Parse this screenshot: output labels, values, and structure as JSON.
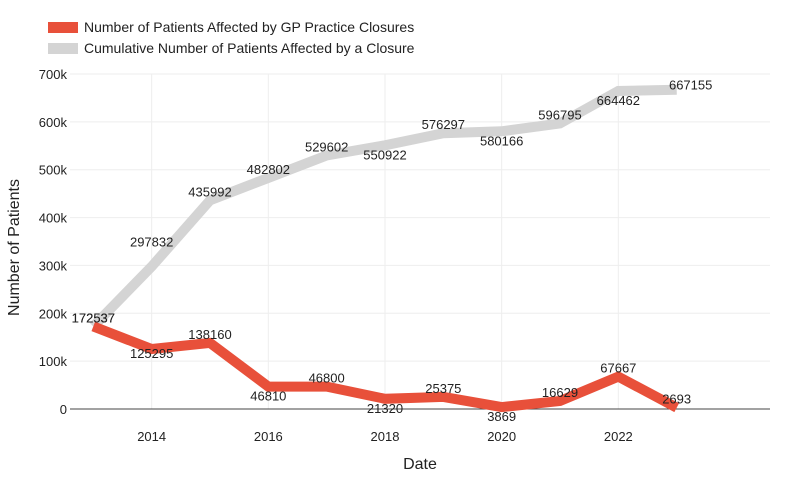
{
  "chart_data": {
    "type": "line",
    "xlabel": "Date",
    "ylabel": "Number of Patients",
    "xlim": [
      2012.6,
      2024.6
    ],
    "ylim": [
      0,
      700000
    ],
    "grid": true,
    "legend_position": "top-left",
    "x_ticks": [
      2014,
      2016,
      2018,
      2020,
      2022
    ],
    "y_ticks": [
      0,
      100000,
      200000,
      300000,
      400000,
      500000,
      600000,
      700000
    ],
    "y_tick_labels": [
      "0",
      "100k",
      "200k",
      "300k",
      "400k",
      "500k",
      "600k",
      "700k"
    ],
    "x": [
      2013,
      2014,
      2015,
      2016,
      2017,
      2018,
      2019,
      2020,
      2021,
      2022,
      2023
    ],
    "series": [
      {
        "name": "Number of Patients Affected by GP Practice Closures",
        "color": "#e8503a",
        "values": [
          172537,
          125295,
          138160,
          46810,
          46800,
          21320,
          25375,
          3869,
          16629,
          67667,
          2693
        ],
        "labels": [
          "172537",
          "125295",
          "138160",
          "46810",
          "46800",
          "21320",
          "25375",
          "3869",
          "16629",
          "67667",
          "2693"
        ]
      },
      {
        "name": "Cumulative Number of Patients Affected by a Closure",
        "color": "#d4d4d4",
        "values": [
          172537,
          297832,
          435992,
          482802,
          529602,
          550922,
          576297,
          580166,
          596795,
          664462,
          667155
        ],
        "labels": [
          "172537",
          "297832",
          "435992",
          "482802",
          "529602",
          "550922",
          "576297",
          "580166",
          "596795",
          "664462",
          "667155"
        ]
      }
    ]
  }
}
